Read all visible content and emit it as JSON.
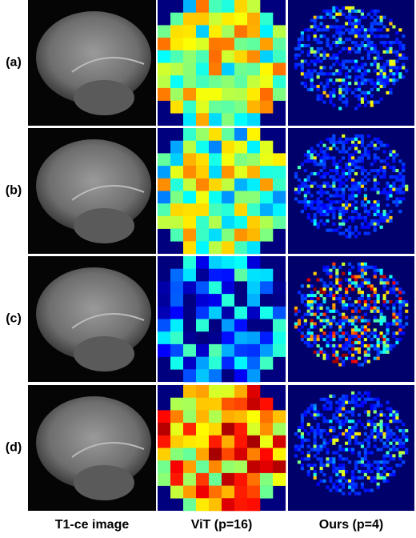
{
  "row_labels": [
    "(a)",
    "(b)",
    "(c)",
    "(d)"
  ],
  "column_labels": [
    "T1-ce image",
    "ViT (p=16)",
    "Ours (p=4)"
  ]
}
